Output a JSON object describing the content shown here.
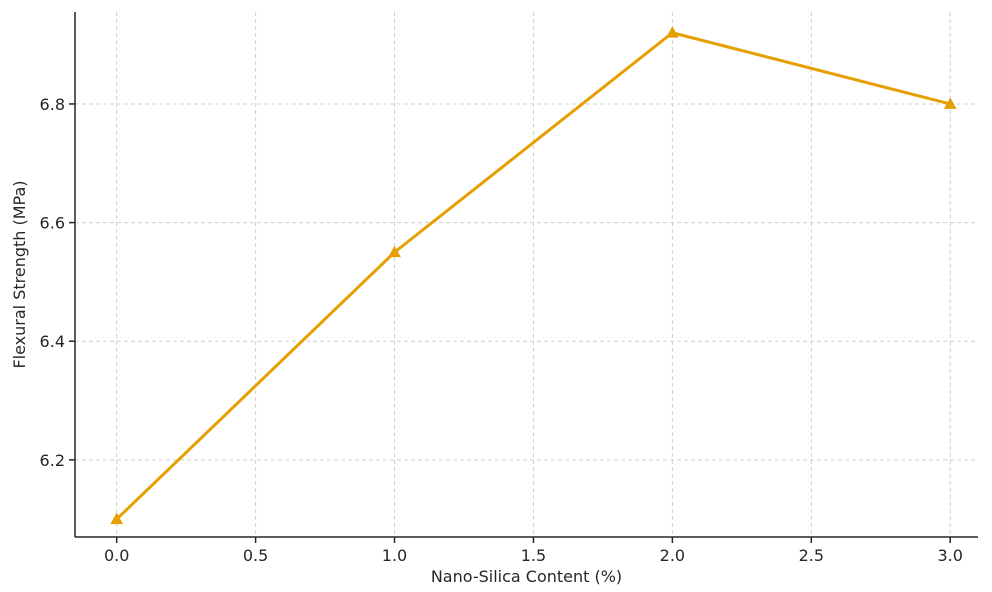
{
  "chart_data": {
    "type": "line",
    "title": "",
    "xlabel": "Nano-Silica Content (%)",
    "ylabel": "Flexural Strength (MPa)",
    "x": [
      0,
      1,
      2,
      3
    ],
    "series": [
      {
        "values": [
          6.1,
          6.55,
          6.92,
          6.8
        ],
        "color": "#E69F00",
        "marker": "triangle-up"
      }
    ],
    "xlim": [
      -0.15,
      3.1
    ],
    "ylim": [
      6.07,
      6.955
    ],
    "xticks": [
      0.0,
      0.5,
      1.0,
      1.5,
      2.0,
      2.5,
      3.0
    ],
    "xtick_labels": [
      "0.0",
      "0.5",
      "1.0",
      "1.5",
      "2.0",
      "2.5",
      "3.0"
    ],
    "yticks": [
      6.2,
      6.4,
      6.6,
      6.8
    ],
    "ytick_labels": [
      "6.2",
      "6.4",
      "6.6",
      "6.8"
    ],
    "grid": true,
    "legend": "none"
  }
}
